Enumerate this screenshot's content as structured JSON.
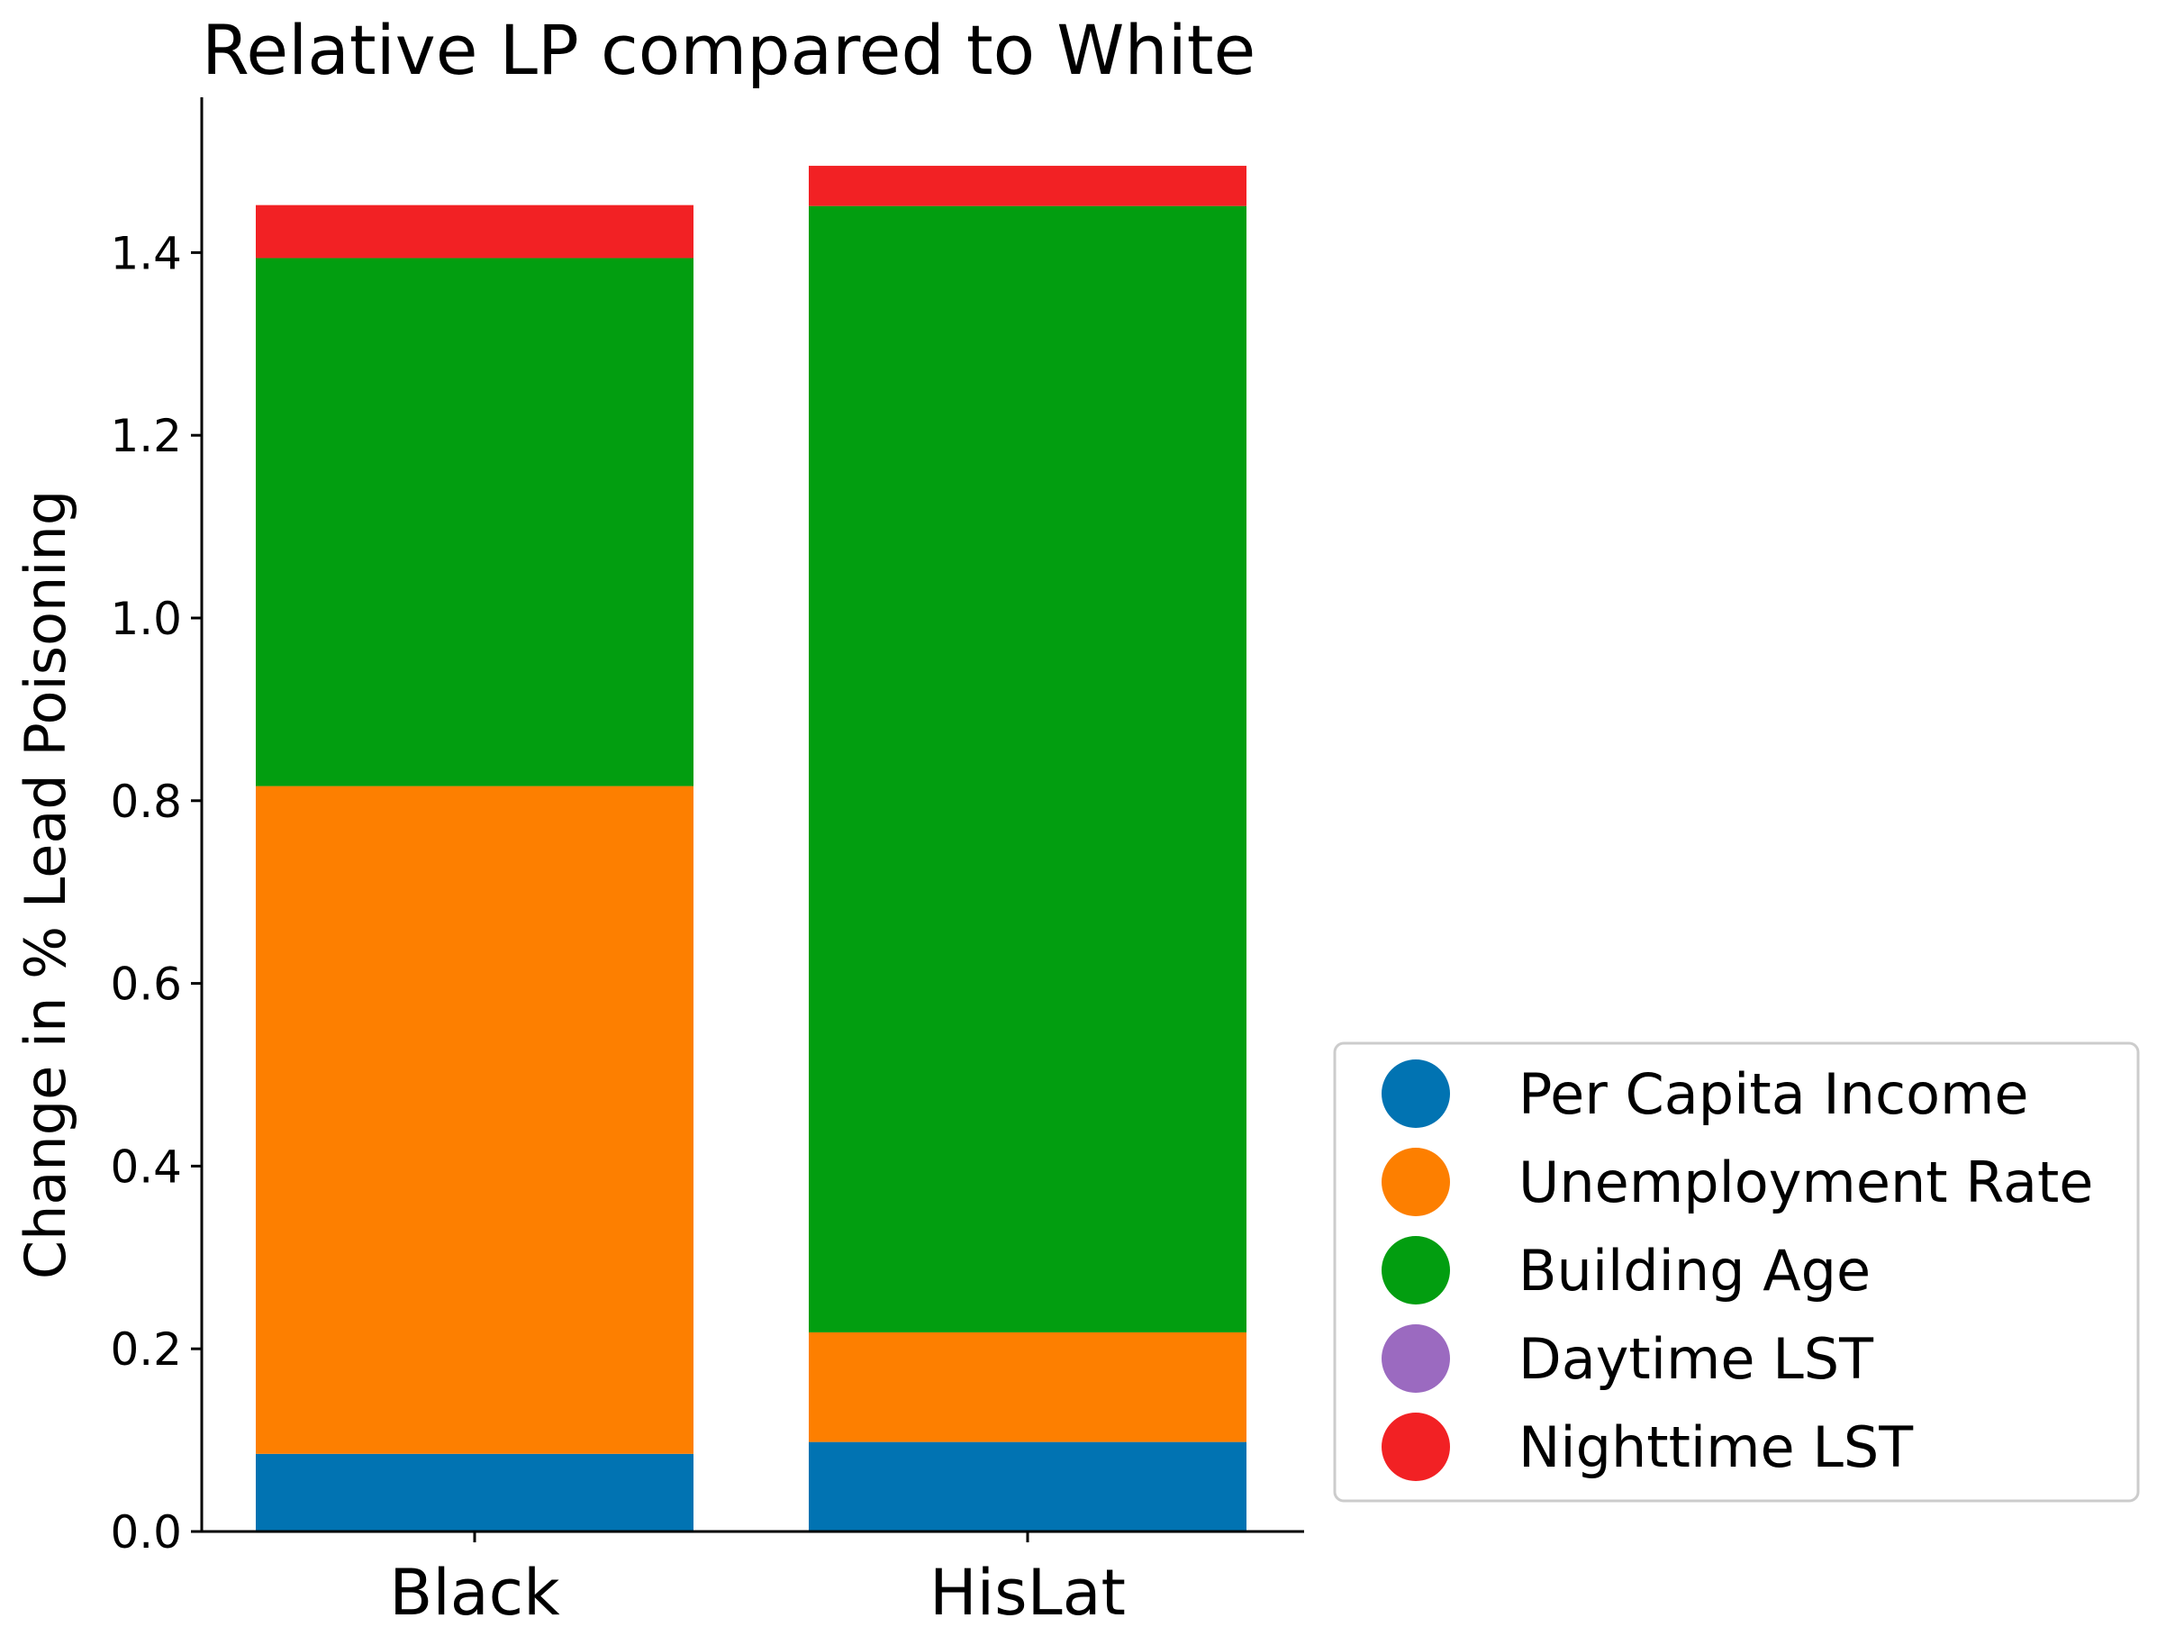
{
  "chart_data": {
    "type": "bar",
    "stacked": true,
    "title": "Relative LP compared to White",
    "xlabel": "",
    "ylabel": "Change in % Lead Poisoning",
    "categories": [
      "Black",
      "HisLat"
    ],
    "ylim": [
      0,
      1.57
    ],
    "yticks": [
      "0.0",
      "0.2",
      "0.4",
      "0.6",
      "0.8",
      "1.0",
      "1.2",
      "1.4"
    ],
    "grid": false,
    "legend_position": "right",
    "series": [
      {
        "name": "Per Capita Income",
        "color": "#0173b2",
        "values": [
          0.085,
          0.098
        ]
      },
      {
        "name": "Unemployment Rate",
        "color": "#fd7f00",
        "values": [
          0.731,
          0.12
        ]
      },
      {
        "name": "Building Age",
        "color": "#029e10",
        "values": [
          0.578,
          1.233
        ]
      },
      {
        "name": "Daytime LST",
        "color": "#9b6ac0",
        "values": [
          0.0,
          0.0
        ]
      },
      {
        "name": "Nighttime LST",
        "color": "#f22124",
        "values": [
          0.058,
          0.044
        ]
      }
    ]
  }
}
